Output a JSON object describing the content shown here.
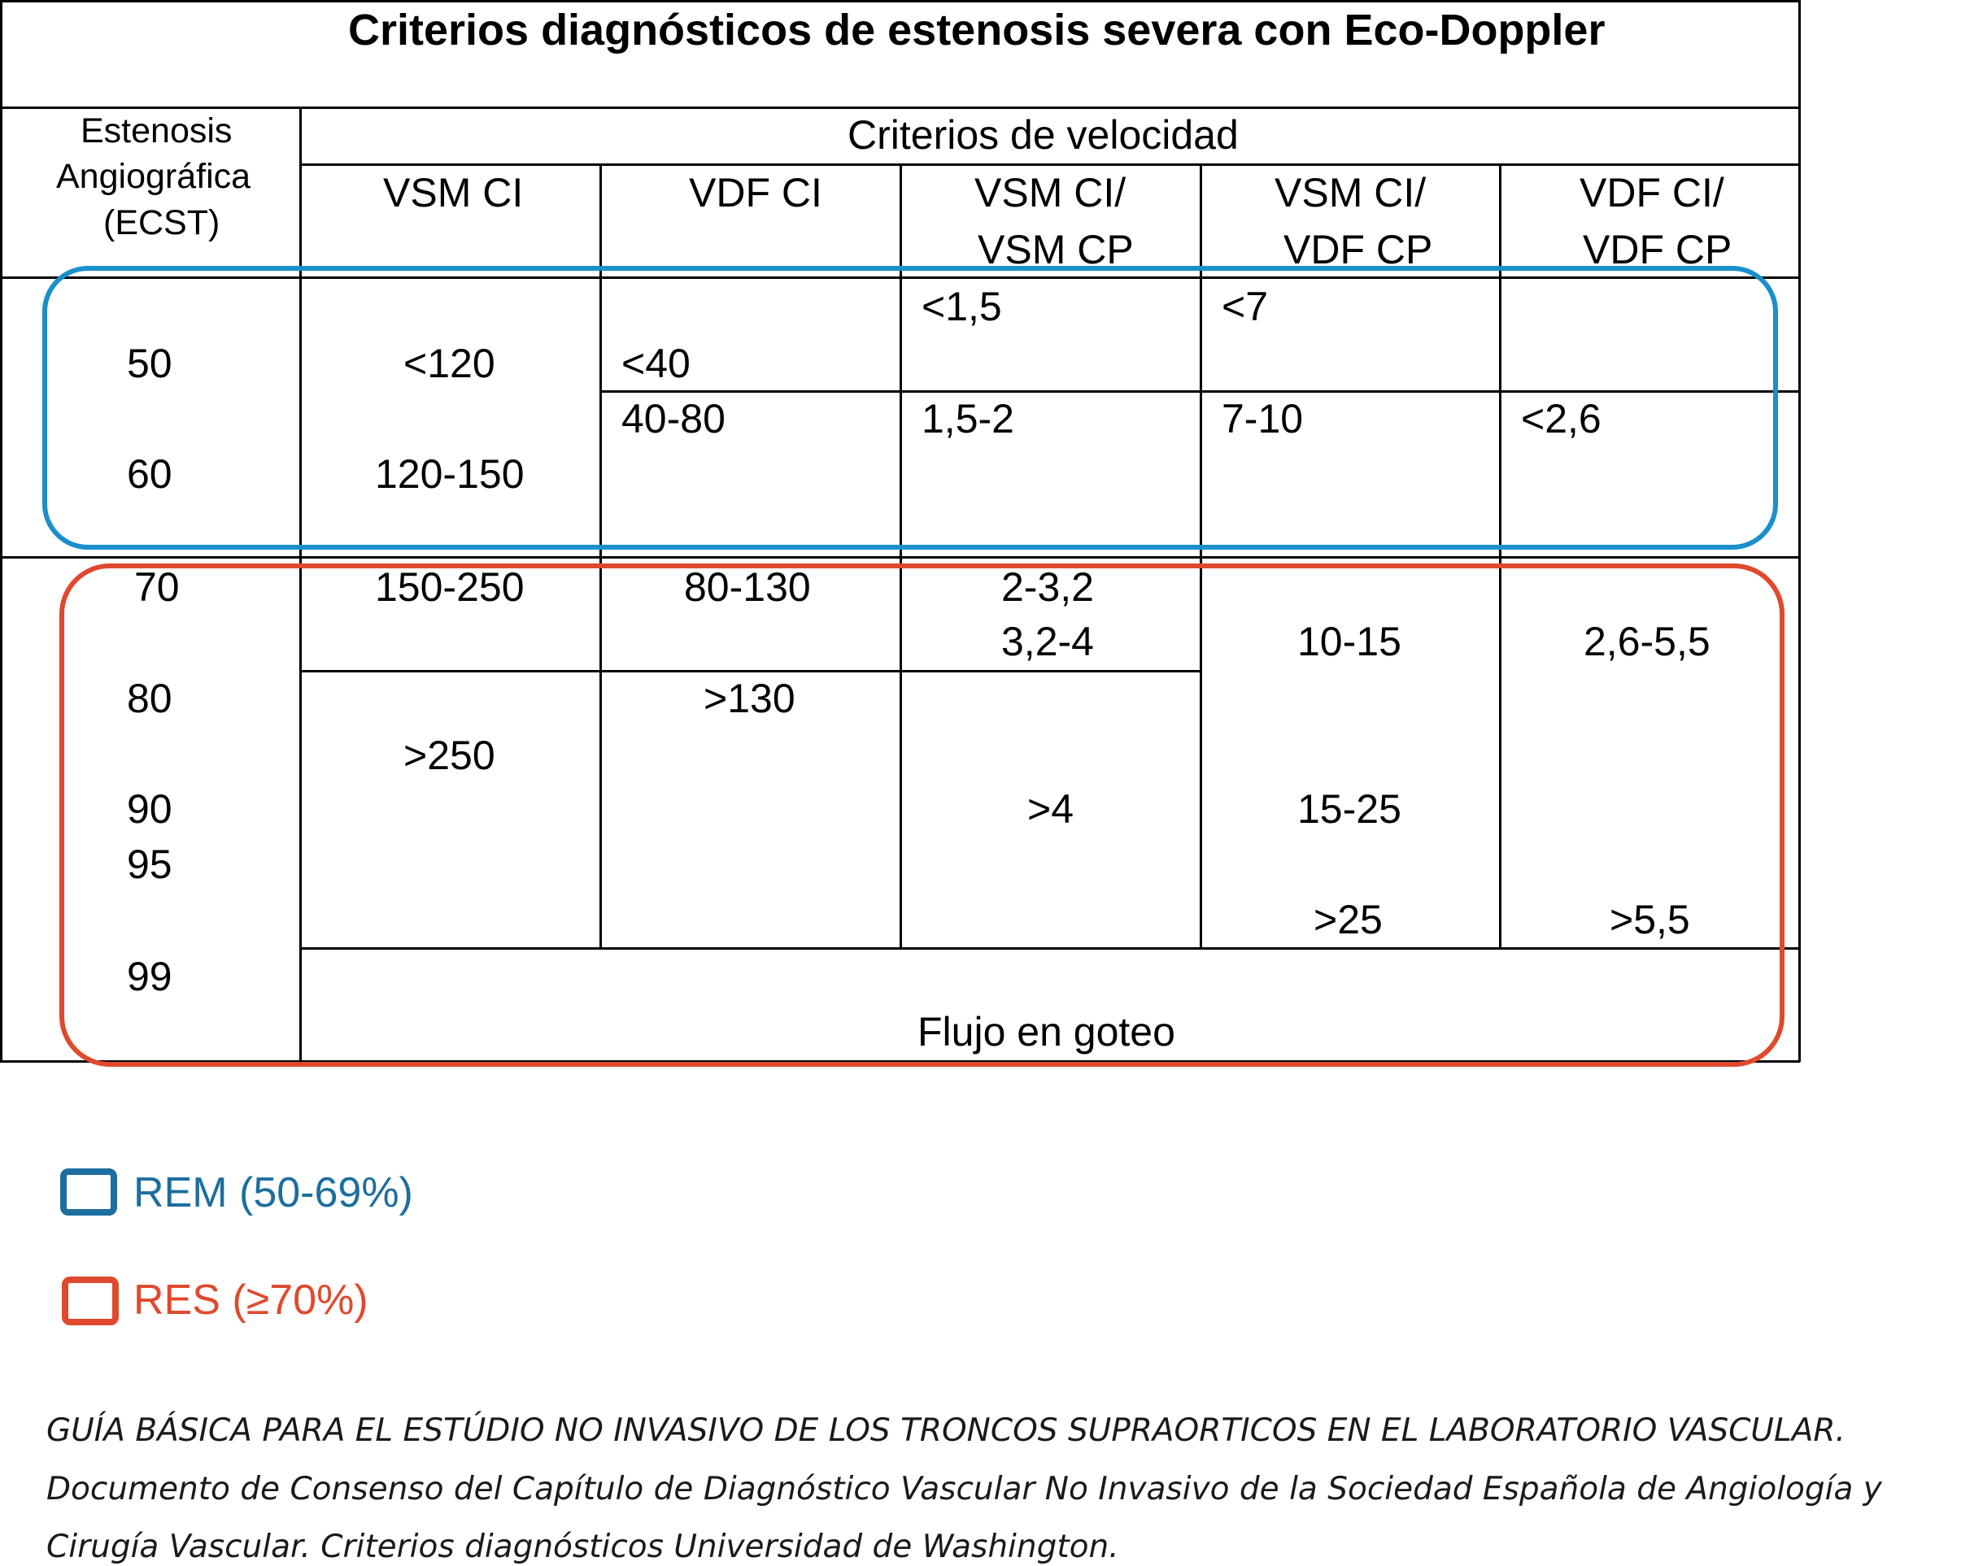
{
  "title": "Criterios diagnósticos de estenosis severa con Eco-Doppler",
  "header": {
    "stenosis_lines": [
      "Estenosis",
      "Angiográfica",
      "(ECST)"
    ],
    "velocity_group": "Criterios de velocidad",
    "columns": [
      [
        "VSM CI"
      ],
      [
        "VDF CI"
      ],
      [
        "VSM CI/",
        "VSM CP"
      ],
      [
        "VSM CI/",
        "VDF CP"
      ],
      [
        "VDF CI/",
        "VDF CP"
      ]
    ]
  },
  "stenosis_values": [
    "50",
    "60",
    "70",
    "80",
    "90",
    "95",
    "99"
  ],
  "cells": {
    "vsm_ci": [
      "<120",
      "120-150",
      "150-250",
      ">250"
    ],
    "vdf_ci": [
      "<40",
      "40-80",
      "80-130",
      ">130"
    ],
    "vsmci_vsmcp": [
      "<1,5",
      "1,5-2",
      "2-3,2",
      "3,2-4",
      ">4"
    ],
    "vsmci_vdfcp": [
      "<7",
      "7-10",
      "10-15",
      "15-25",
      ">25"
    ],
    "vdfci_vdfcp": [
      "<2,6",
      "2,6-5,5",
      ">5,5"
    ],
    "flujo": "Flujo en goteo"
  },
  "legend": {
    "rem": "REM (50-69%)",
    "res": "RES (≥70%)"
  },
  "colors": {
    "blue_box": "#1a8fcc",
    "red_box": "#e0492d",
    "legend_blue": "#1b6e9e",
    "legend_red": "#e0492d"
  },
  "citation": [
    "GUÍA BÁSICA PARA EL ESTÚDIO NO INVASIVO DE LOS TRONCOS SUPRAORTICOS EN EL LABORATORIO VASCULAR.",
    "Documento de Consenso del Capítulo de Diagnóstico Vascular No Invasivo de la Sociedad Española de Angiología y",
    "Cirugía Vascular. Criterios diagnósticos Universidad de Washington."
  ]
}
